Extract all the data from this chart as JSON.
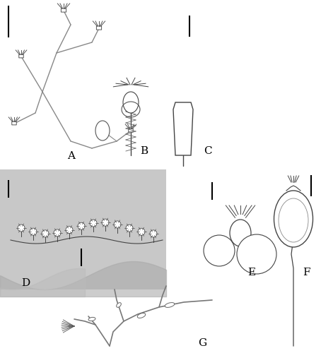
{
  "figure_width": 4.54,
  "figure_height": 5.0,
  "dpi": 100,
  "background_color": "#ffffff",
  "label_A": "A",
  "label_B": "B",
  "label_C": "C",
  "label_D": "D",
  "label_E": "E",
  "label_F": "F",
  "label_G": "G",
  "label_fontsize": 11,
  "label_color": "#000000",
  "scalebar_color": "#000000",
  "scalebar_linewidth": 1.5,
  "panel_D_bg": "#d0d0d0",
  "outline_color": "#555555",
  "line_color": "#888888"
}
